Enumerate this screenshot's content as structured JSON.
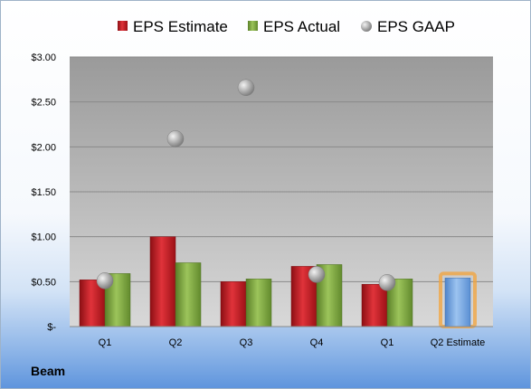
{
  "company": "Beam",
  "colors": {
    "estimate": "#c0191f",
    "actual": "#77a33a",
    "gaap": "#a6a6a6",
    "next_estimate": "#6d9fdb",
    "next_estimate_glow": "#f3a33a",
    "plot_bg": "#c8c8c8"
  },
  "chart_data": {
    "type": "bar",
    "categories": [
      "Q1",
      "Q2",
      "Q3",
      "Q4",
      "Q1",
      "Q2 Estimate"
    ],
    "series": [
      {
        "name": "EPS Estimate",
        "values": [
          0.52,
          1.0,
          0.5,
          0.67,
          0.47,
          null
        ]
      },
      {
        "name": "EPS Actual",
        "values": [
          0.59,
          0.71,
          0.53,
          0.69,
          0.53,
          null
        ]
      },
      {
        "name": "EPS GAAP",
        "kind": "marker",
        "values": [
          0.51,
          2.09,
          2.66,
          0.58,
          0.49,
          null
        ]
      }
    ],
    "next_estimate": {
      "category": "Q2 Estimate",
      "value": 0.54
    },
    "y_ticks": [
      "$-",
      "$0.50",
      "$1.00",
      "$1.50",
      "$2.00",
      "$2.50",
      "$3.00"
    ],
    "ylim": [
      0,
      3.0
    ],
    "legend_position": "top",
    "grid": true
  }
}
